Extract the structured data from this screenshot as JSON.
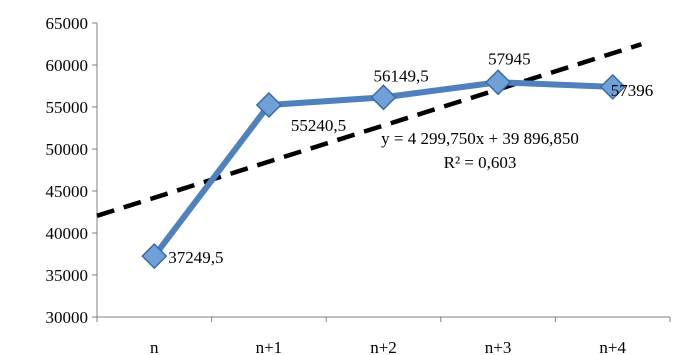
{
  "chart_data": {
    "type": "line",
    "categories": [
      "n",
      "n+1",
      "n+2",
      "n+3",
      "n+4"
    ],
    "series": [
      {
        "values": [
          37249.5,
          55240.5,
          56149.5,
          57945,
          57396
        ],
        "labels": [
          "37249,5",
          "55240,5",
          "56149,5",
          "57945",
          "57396"
        ],
        "color": "#4f81bd",
        "marker": "diamond"
      }
    ],
    "trendline": {
      "type": "linear",
      "slope": 4299.75,
      "intercept": 39896.85,
      "equation": "y = 4 299,750x + 39 896,850",
      "r2_text": "R² = 0,603",
      "style": "dashed",
      "color": "#000000"
    },
    "ylim": [
      30000,
      65000
    ],
    "yticks": [
      30000,
      35000,
      40000,
      45000,
      50000,
      55000,
      60000,
      65000
    ],
    "ytick_labels": [
      "30000",
      "35000",
      "40000",
      "45000",
      "50000",
      "55000",
      "60000",
      "65000"
    ],
    "title": "",
    "xlabel": "",
    "ylabel": "",
    "grid": false,
    "legend": "none"
  }
}
